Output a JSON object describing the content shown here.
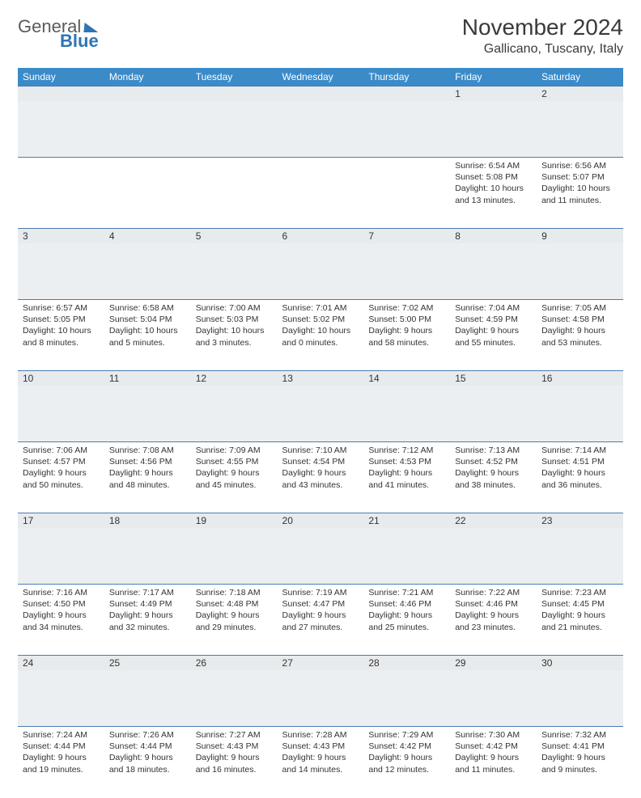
{
  "header": {
    "logo_general": "General",
    "logo_blue": "Blue",
    "title": "November 2024",
    "subtitle": "Gallicano, Tuscany, Italy"
  },
  "colors": {
    "header_bg": "#3b8bc9",
    "header_text": "#ffffff",
    "daynum_bg": "#e8ebee",
    "border": "#4a7cae",
    "text": "#333333",
    "logo_blue": "#2e75b6"
  },
  "weekdays": [
    "Sunday",
    "Monday",
    "Tuesday",
    "Wednesday",
    "Thursday",
    "Friday",
    "Saturday"
  ],
  "weeks": [
    [
      {
        "n": "",
        "lines": []
      },
      {
        "n": "",
        "lines": []
      },
      {
        "n": "",
        "lines": []
      },
      {
        "n": "",
        "lines": []
      },
      {
        "n": "",
        "lines": []
      },
      {
        "n": "1",
        "lines": [
          "Sunrise: 6:54 AM",
          "Sunset: 5:08 PM",
          "Daylight: 10 hours",
          "and 13 minutes."
        ]
      },
      {
        "n": "2",
        "lines": [
          "Sunrise: 6:56 AM",
          "Sunset: 5:07 PM",
          "Daylight: 10 hours",
          "and 11 minutes."
        ]
      }
    ],
    [
      {
        "n": "3",
        "lines": [
          "Sunrise: 6:57 AM",
          "Sunset: 5:05 PM",
          "Daylight: 10 hours",
          "and 8 minutes."
        ]
      },
      {
        "n": "4",
        "lines": [
          "Sunrise: 6:58 AM",
          "Sunset: 5:04 PM",
          "Daylight: 10 hours",
          "and 5 minutes."
        ]
      },
      {
        "n": "5",
        "lines": [
          "Sunrise: 7:00 AM",
          "Sunset: 5:03 PM",
          "Daylight: 10 hours",
          "and 3 minutes."
        ]
      },
      {
        "n": "6",
        "lines": [
          "Sunrise: 7:01 AM",
          "Sunset: 5:02 PM",
          "Daylight: 10 hours",
          "and 0 minutes."
        ]
      },
      {
        "n": "7",
        "lines": [
          "Sunrise: 7:02 AM",
          "Sunset: 5:00 PM",
          "Daylight: 9 hours",
          "and 58 minutes."
        ]
      },
      {
        "n": "8",
        "lines": [
          "Sunrise: 7:04 AM",
          "Sunset: 4:59 PM",
          "Daylight: 9 hours",
          "and 55 minutes."
        ]
      },
      {
        "n": "9",
        "lines": [
          "Sunrise: 7:05 AM",
          "Sunset: 4:58 PM",
          "Daylight: 9 hours",
          "and 53 minutes."
        ]
      }
    ],
    [
      {
        "n": "10",
        "lines": [
          "Sunrise: 7:06 AM",
          "Sunset: 4:57 PM",
          "Daylight: 9 hours",
          "and 50 minutes."
        ]
      },
      {
        "n": "11",
        "lines": [
          "Sunrise: 7:08 AM",
          "Sunset: 4:56 PM",
          "Daylight: 9 hours",
          "and 48 minutes."
        ]
      },
      {
        "n": "12",
        "lines": [
          "Sunrise: 7:09 AM",
          "Sunset: 4:55 PM",
          "Daylight: 9 hours",
          "and 45 minutes."
        ]
      },
      {
        "n": "13",
        "lines": [
          "Sunrise: 7:10 AM",
          "Sunset: 4:54 PM",
          "Daylight: 9 hours",
          "and 43 minutes."
        ]
      },
      {
        "n": "14",
        "lines": [
          "Sunrise: 7:12 AM",
          "Sunset: 4:53 PM",
          "Daylight: 9 hours",
          "and 41 minutes."
        ]
      },
      {
        "n": "15",
        "lines": [
          "Sunrise: 7:13 AM",
          "Sunset: 4:52 PM",
          "Daylight: 9 hours",
          "and 38 minutes."
        ]
      },
      {
        "n": "16",
        "lines": [
          "Sunrise: 7:14 AM",
          "Sunset: 4:51 PM",
          "Daylight: 9 hours",
          "and 36 minutes."
        ]
      }
    ],
    [
      {
        "n": "17",
        "lines": [
          "Sunrise: 7:16 AM",
          "Sunset: 4:50 PM",
          "Daylight: 9 hours",
          "and 34 minutes."
        ]
      },
      {
        "n": "18",
        "lines": [
          "Sunrise: 7:17 AM",
          "Sunset: 4:49 PM",
          "Daylight: 9 hours",
          "and 32 minutes."
        ]
      },
      {
        "n": "19",
        "lines": [
          "Sunrise: 7:18 AM",
          "Sunset: 4:48 PM",
          "Daylight: 9 hours",
          "and 29 minutes."
        ]
      },
      {
        "n": "20",
        "lines": [
          "Sunrise: 7:19 AM",
          "Sunset: 4:47 PM",
          "Daylight: 9 hours",
          "and 27 minutes."
        ]
      },
      {
        "n": "21",
        "lines": [
          "Sunrise: 7:21 AM",
          "Sunset: 4:46 PM",
          "Daylight: 9 hours",
          "and 25 minutes."
        ]
      },
      {
        "n": "22",
        "lines": [
          "Sunrise: 7:22 AM",
          "Sunset: 4:46 PM",
          "Daylight: 9 hours",
          "and 23 minutes."
        ]
      },
      {
        "n": "23",
        "lines": [
          "Sunrise: 7:23 AM",
          "Sunset: 4:45 PM",
          "Daylight: 9 hours",
          "and 21 minutes."
        ]
      }
    ],
    [
      {
        "n": "24",
        "lines": [
          "Sunrise: 7:24 AM",
          "Sunset: 4:44 PM",
          "Daylight: 9 hours",
          "and 19 minutes."
        ]
      },
      {
        "n": "25",
        "lines": [
          "Sunrise: 7:26 AM",
          "Sunset: 4:44 PM",
          "Daylight: 9 hours",
          "and 18 minutes."
        ]
      },
      {
        "n": "26",
        "lines": [
          "Sunrise: 7:27 AM",
          "Sunset: 4:43 PM",
          "Daylight: 9 hours",
          "and 16 minutes."
        ]
      },
      {
        "n": "27",
        "lines": [
          "Sunrise: 7:28 AM",
          "Sunset: 4:43 PM",
          "Daylight: 9 hours",
          "and 14 minutes."
        ]
      },
      {
        "n": "28",
        "lines": [
          "Sunrise: 7:29 AM",
          "Sunset: 4:42 PM",
          "Daylight: 9 hours",
          "and 12 minutes."
        ]
      },
      {
        "n": "29",
        "lines": [
          "Sunrise: 7:30 AM",
          "Sunset: 4:42 PM",
          "Daylight: 9 hours",
          "and 11 minutes."
        ]
      },
      {
        "n": "30",
        "lines": [
          "Sunrise: 7:32 AM",
          "Sunset: 4:41 PM",
          "Daylight: 9 hours",
          "and 9 minutes."
        ]
      }
    ]
  ]
}
